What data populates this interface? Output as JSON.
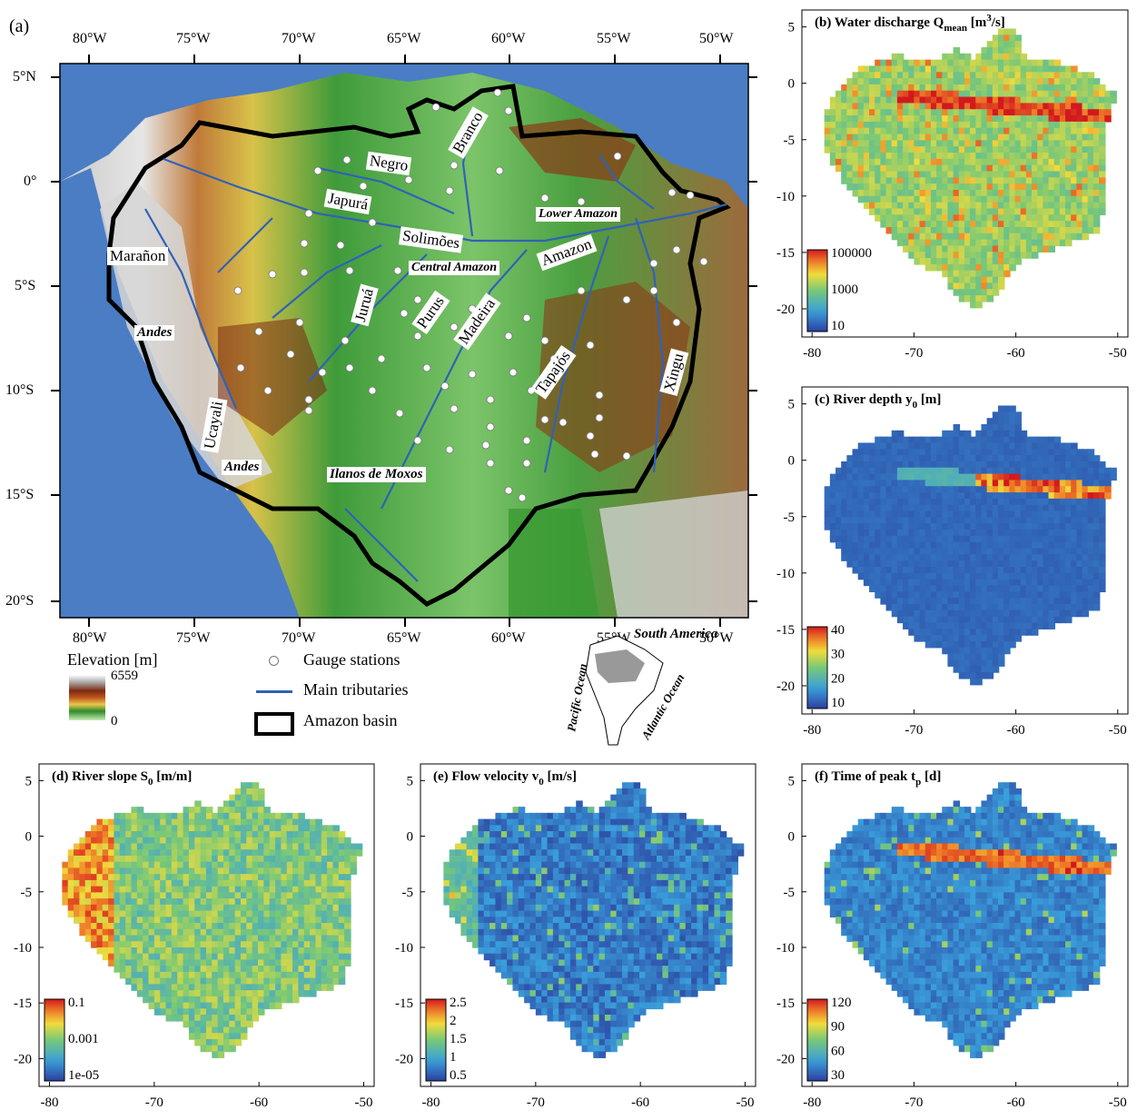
{
  "panel_a": {
    "label": "(a)",
    "lon_ticks": [
      "80°W",
      "75°W",
      "70°W",
      "65°W",
      "60°W",
      "55°W",
      "50°W"
    ],
    "lat_ticks": [
      "5°N",
      "0°",
      "5°S",
      "10°S",
      "15°S",
      "20°S"
    ],
    "rivers": [
      "Negro",
      "Branco",
      "Japurá",
      "Solimões",
      "Lower Amazon",
      "Marañon",
      "Central Amazon",
      "Amazon",
      "Juruá",
      "Purus",
      "Madeira",
      "Tapajós",
      "Xingu",
      "Andes",
      "Ucayali",
      "Andes",
      "Ilanos de Moxos"
    ],
    "legend": {
      "elevation_title": "Elevation [m]",
      "elevation_max": "6559",
      "elevation_min": "0",
      "gauge": "Gauge stations",
      "tributaries": "Main tributaries",
      "basin": "Amazon basin"
    },
    "inset": {
      "title": "South America",
      "pacific": "Pacific Ocean",
      "atlantic": "Atlantic Ocean"
    }
  },
  "maps": {
    "x_ticks": [
      "-80",
      "-70",
      "-60",
      "-50"
    ],
    "b": {
      "title": "(b) Water discharge Q",
      "sub": "mean",
      "unit": " [m",
      "sup": "3",
      "unit2": "/s]",
      "y_ticks": [
        "5",
        "0",
        "-5",
        "-10",
        "-15",
        "-20"
      ],
      "cbar": [
        "100000",
        "1000",
        "10"
      ]
    },
    "c": {
      "title": "(c) River depth y",
      "sub": "0",
      "unit": " [m]",
      "y_ticks": [
        "5",
        "0",
        "-5",
        "-10",
        "-15",
        "-20"
      ],
      "cbar": [
        "40",
        "30",
        "20",
        "10"
      ]
    },
    "d": {
      "title": "(d) River slope S",
      "sub": "0",
      "unit": " [m/m]",
      "y_ticks": [
        "5",
        "0",
        "-5",
        "-10",
        "-15",
        "-20"
      ],
      "cbar": [
        "0.1",
        "0.001",
        "1e-05"
      ]
    },
    "e": {
      "title": "(e) Flow velocity v",
      "sub": "0",
      "unit": " [m/s]",
      "y_ticks": [
        "5",
        "0",
        "-5",
        "-10",
        "-15",
        "-20"
      ],
      "cbar": [
        "2.5",
        "2",
        "1.5",
        "1",
        "0.5"
      ]
    },
    "f": {
      "title": "(f) Time of peak t",
      "sub": "p",
      "unit": " [d]",
      "y_ticks": [
        "5",
        "0",
        "-5",
        "-10",
        "-15",
        "-20"
      ],
      "cbar": [
        "120",
        "90",
        "60",
        "30"
      ]
    }
  },
  "colors": {
    "ocean": "#4a7dc4",
    "river": "#2f62b8",
    "basin": "#000000",
    "jet_low": "#2c3f9e",
    "jet_high": "#d7191c"
  }
}
